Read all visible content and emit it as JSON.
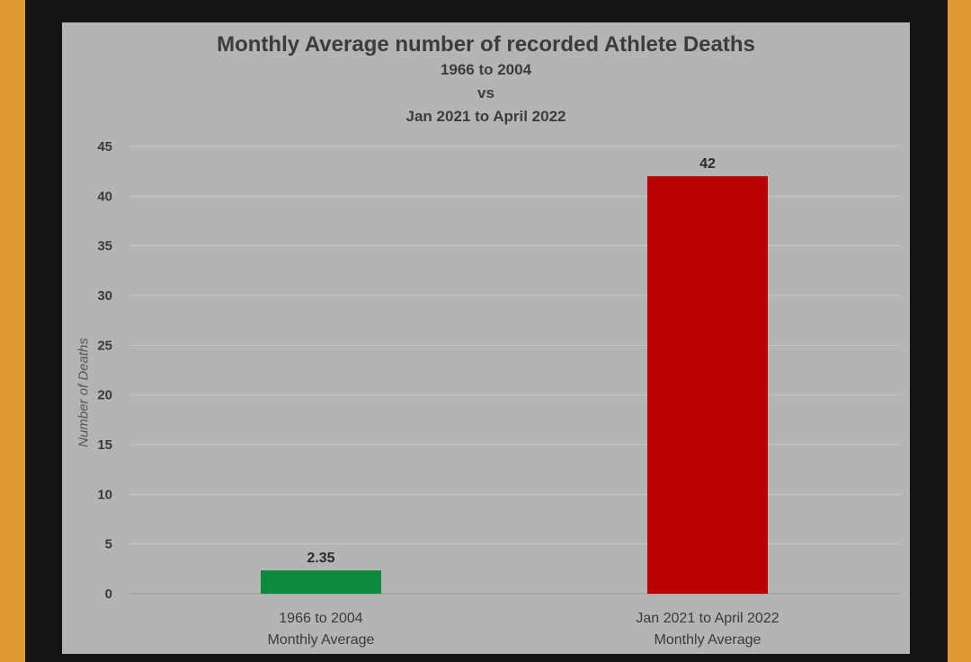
{
  "chart_data": {
    "type": "bar",
    "title": "Monthly Average number of recorded Athlete Deaths",
    "subtitle_lines": [
      "1966 to 2004",
      "vs",
      "Jan 2021 to April 2022"
    ],
    "ylabel": "Number of Deaths",
    "xlabel": "",
    "ylim": [
      0,
      45
    ],
    "yticks": [
      0,
      5,
      10,
      15,
      20,
      25,
      30,
      35,
      40,
      45
    ],
    "grid": true,
    "legend": "none",
    "categories": [
      {
        "line1": "1966 to 2004",
        "line2": "Monthly Average"
      },
      {
        "line1": "Jan 2021 to April 2022",
        "line2": "Monthly Average"
      }
    ],
    "values": [
      2.35,
      42
    ],
    "data_labels": [
      "2.35",
      "42"
    ],
    "colors": [
      "#0b8a3e",
      "#b80000"
    ]
  }
}
